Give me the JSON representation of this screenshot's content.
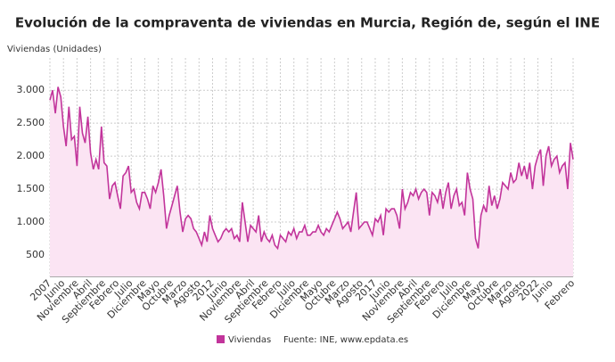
{
  "chart_data": {
    "type": "line",
    "title": "Evolución de la compraventa de viviendas en Murcia, Región de, según el INE",
    "y_label": "Viviendas (Unidades)",
    "source": "Fuente: INE, www.epdata.es",
    "categories": [
      "2007",
      null,
      null,
      null,
      null,
      "Junio",
      null,
      null,
      null,
      null,
      "Noviembre",
      null,
      null,
      null,
      null,
      "Abril",
      null,
      null,
      null,
      null,
      "Septiembre",
      null,
      null,
      null,
      null,
      "Febrero",
      null,
      null,
      null,
      null,
      "Julio",
      null,
      null,
      null,
      null,
      "Diciembre",
      null,
      null,
      null,
      null,
      "Mayo",
      null,
      null,
      null,
      null,
      "Octubre",
      null,
      null,
      null,
      null,
      "Marzo",
      null,
      null,
      null,
      null,
      "Agosto",
      null,
      null,
      null,
      null,
      "2012",
      null,
      null,
      null,
      null,
      "Junio",
      null,
      null,
      null,
      null,
      "Noviembre",
      null,
      null,
      null,
      null,
      "Abril",
      null,
      null,
      null,
      null,
      "Septiembre",
      null,
      null,
      null,
      null,
      "Febrero",
      null,
      null,
      null,
      null,
      "Julio",
      null,
      null,
      null,
      null,
      "Diciembre",
      null,
      null,
      null,
      null,
      "Mayo",
      null,
      null,
      null,
      null,
      "Octubre",
      null,
      null,
      null,
      null,
      "Marzo",
      null,
      null,
      null,
      null,
      "Agosto",
      null,
      null,
      null,
      null,
      "2017",
      null,
      null,
      null,
      null,
      "Junio",
      null,
      null,
      null,
      null,
      "Noviembre",
      null,
      null,
      null,
      null,
      "Abril",
      null,
      null,
      null,
      null,
      "Septiembre",
      null,
      null,
      null,
      null,
      "Febrero",
      null,
      null,
      null,
      null,
      "Julio",
      null,
      null,
      null,
      null,
      "Diciembre",
      null,
      null,
      null,
      null,
      "Mayo",
      null,
      null,
      null,
      null,
      "Octubre",
      null,
      null,
      null,
      null,
      "Marzo",
      null,
      null,
      null,
      null,
      "Agosto",
      null,
      null,
      null,
      null,
      "2022",
      null,
      null,
      null,
      null,
      "Junio",
      null,
      null,
      null,
      null,
      null,
      null,
      null,
      "Febrero"
    ],
    "series": [
      {
        "name": "Viviendas",
        "color": "#c2349b",
        "fill": "#fbe4f3",
        "values": [
          2850,
          3000,
          2650,
          3050,
          2900,
          2450,
          2150,
          2750,
          2250,
          2300,
          1850,
          2750,
          2350,
          2200,
          2600,
          2050,
          1800,
          1950,
          1800,
          2450,
          1900,
          1850,
          1350,
          1550,
          1600,
          1400,
          1200,
          1700,
          1750,
          1850,
          1450,
          1500,
          1300,
          1200,
          1450,
          1450,
          1350,
          1200,
          1550,
          1450,
          1600,
          1800,
          1400,
          900,
          1100,
          1250,
          1400,
          1550,
          1150,
          850,
          1050,
          1100,
          1050,
          900,
          850,
          750,
          650,
          850,
          700,
          1100,
          900,
          800,
          700,
          750,
          850,
          900,
          850,
          900,
          750,
          800,
          700,
          1300,
          1000,
          700,
          950,
          900,
          850,
          1100,
          700,
          850,
          750,
          700,
          800,
          650,
          600,
          800,
          750,
          700,
          850,
          800,
          900,
          750,
          850,
          850,
          950,
          800,
          800,
          850,
          850,
          950,
          850,
          800,
          900,
          850,
          950,
          1050,
          1150,
          1050,
          900,
          950,
          1000,
          850,
          1150,
          1450,
          900,
          950,
          1000,
          1000,
          900,
          800,
          1050,
          1000,
          1100,
          800,
          1200,
          1150,
          1200,
          1200,
          1100,
          900,
          1500,
          1200,
          1300,
          1450,
          1400,
          1500,
          1350,
          1450,
          1500,
          1450,
          1100,
          1450,
          1400,
          1300,
          1500,
          1200,
          1450,
          1600,
          1200,
          1400,
          1500,
          1250,
          1300,
          1100,
          1750,
          1500,
          1350,
          750,
          600,
          1100,
          1250,
          1150,
          1550,
          1250,
          1400,
          1200,
          1350,
          1600,
          1550,
          1500,
          1750,
          1600,
          1650,
          1900,
          1700,
          1850,
          1650,
          1900,
          1500,
          1850,
          2000,
          2100,
          1550,
          2000,
          2150,
          1850,
          1950,
          2000,
          1750,
          1850,
          1900,
          1500,
          2200,
          1950
        ]
      }
    ],
    "ylim": [
      175,
      3490
    ],
    "yticks": [
      {
        "value": 500,
        "label": "500"
      },
      {
        "value": 1000,
        "label": "1.000"
      },
      {
        "value": 1500,
        "label": "1.500"
      },
      {
        "value": 2000,
        "label": "2.000"
      },
      {
        "value": 2500,
        "label": "2.500"
      },
      {
        "value": 3000,
        "label": "3.000"
      }
    ],
    "grid": true
  }
}
